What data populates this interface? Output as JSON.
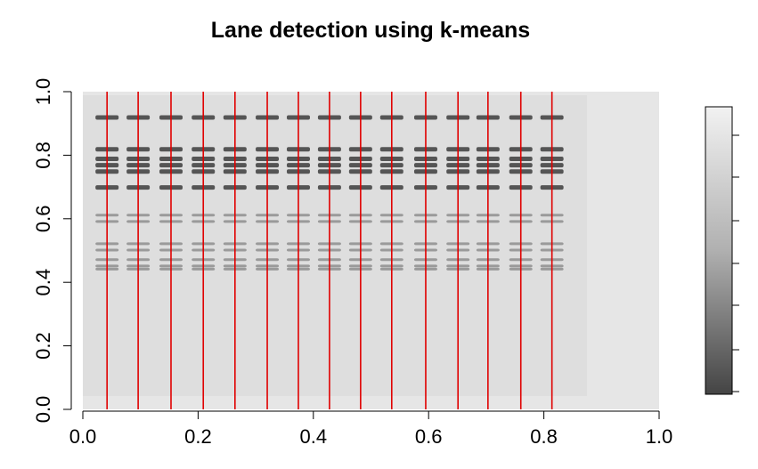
{
  "chart_data": {
    "type": "lanes",
    "title": "Lane detection using k-means",
    "lanes": [
      0.042,
      0.096,
      0.153,
      0.209,
      0.264,
      0.32,
      0.374,
      0.428,
      0.482,
      0.536,
      0.595,
      0.651,
      0.703,
      0.76,
      0.814
    ],
    "bands": [
      0.92,
      0.82,
      0.79,
      0.77,
      0.75,
      0.7,
      0.61,
      0.59,
      0.52,
      0.5,
      0.47,
      0.45,
      0.44
    ],
    "lane_color": "#e00000",
    "xlim": [
      0,
      1
    ],
    "ylim": [
      0,
      1
    ],
    "xticks": [
      {
        "value": 0,
        "label": "0.0"
      },
      0.2,
      0.4,
      0.6,
      0.8,
      {
        "value": 1,
        "label": "1.0"
      }
    ],
    "yticks": [
      {
        "value": 0,
        "label": "0.0"
      },
      0.2,
      0.4,
      0.6,
      0.8,
      {
        "value": 1,
        "label": "1.0"
      }
    ]
  }
}
